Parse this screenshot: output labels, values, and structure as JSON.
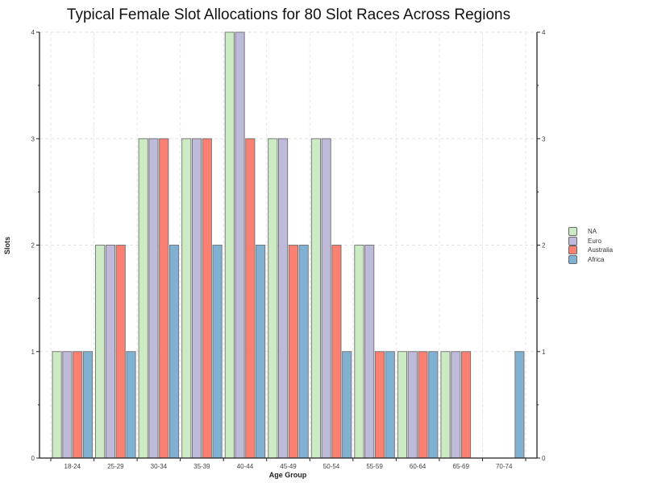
{
  "chart_data": {
    "type": "bar",
    "title": "Typical Female Slot Allocations for 80 Slot Races Across Regions",
    "xlabel": "Age Group",
    "ylabel": "Slots",
    "ylim": [
      0,
      4
    ],
    "yticks": [
      0,
      1,
      2,
      3,
      4
    ],
    "grid": true,
    "legend_position": "right",
    "categories": [
      "18-24",
      "25-29",
      "30-34",
      "35-39",
      "40-44",
      "45-49",
      "50-54",
      "55-59",
      "60-64",
      "65-69",
      "70-74"
    ],
    "series": [
      {
        "name": "NA",
        "color": "#ccebc5",
        "values": [
          1,
          2,
          3,
          3,
          4,
          3,
          3,
          2,
          1,
          1,
          0
        ]
      },
      {
        "name": "Euro",
        "color": "#bebada",
        "values": [
          1,
          2,
          3,
          3,
          4,
          3,
          3,
          2,
          1,
          1,
          0
        ]
      },
      {
        "name": "Australia",
        "color": "#fb8072",
        "values": [
          1,
          2,
          3,
          3,
          3,
          2,
          2,
          1,
          1,
          1,
          0
        ]
      },
      {
        "name": "Africa",
        "color": "#80b1d3",
        "values": [
          1,
          1,
          2,
          2,
          2,
          2,
          1,
          1,
          1,
          0,
          1
        ]
      }
    ]
  }
}
